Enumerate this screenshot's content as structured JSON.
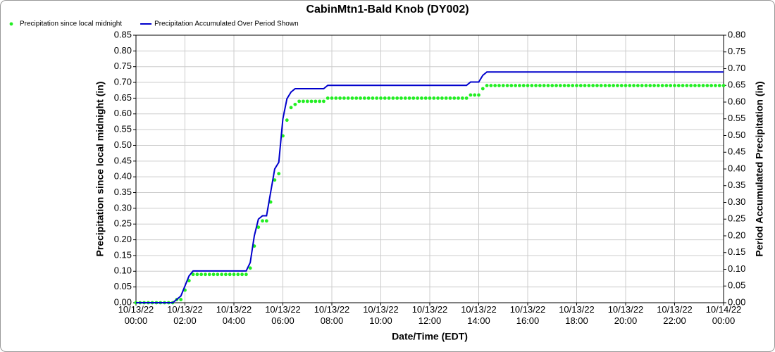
{
  "chart_data": {
    "type": "line",
    "title": "CabinMtn1-Bald Knob (DY002)",
    "x_label": "Date/Time (EDT)",
    "y_label": "Precipitation since local midnight (in)",
    "y2_label": "Period Accumulated Precipitation (in)",
    "grid": true,
    "legend": "top-left",
    "xlim": [
      "10/13/22 00:00",
      "10/14/22 00:00"
    ],
    "xticks": [
      "10/13/22 00:00",
      "10/13/22 02:00",
      "10/13/22 04:00",
      "10/13/22 06:00",
      "10/13/22 08:00",
      "10/13/22 10:00",
      "10/13/22 12:00",
      "10/13/22 14:00",
      "10/13/22 16:00",
      "10/13/22 18:00",
      "10/13/22 20:00",
      "10/13/22 22:00",
      "10/14/22 00:00"
    ],
    "ylim": [
      0,
      0.85
    ],
    "yticks": [
      {
        "value": 0,
        "label": "0.00"
      },
      {
        "value": 0.05,
        "label": "0.05"
      },
      {
        "value": 0.1,
        "label": "0.10"
      },
      {
        "value": 0.15,
        "label": "0.15"
      },
      {
        "value": 0.2,
        "label": "0.20"
      },
      {
        "value": 0.25,
        "label": "0.25"
      },
      {
        "value": 0.3,
        "label": "0.30"
      },
      {
        "value": 0.35,
        "label": "0.35"
      },
      {
        "value": 0.4,
        "label": "0.40"
      },
      {
        "value": 0.45,
        "label": "0.45"
      },
      {
        "value": 0.5,
        "label": "0.50"
      },
      {
        "value": 0.55,
        "label": "0.55"
      },
      {
        "value": 0.6,
        "label": "0.60"
      },
      {
        "value": 0.65,
        "label": "0.65"
      },
      {
        "value": 0.7,
        "label": "0.70"
      },
      {
        "value": 0.75,
        "label": "0.75"
      },
      {
        "value": 0.8,
        "label": "0.80"
      },
      {
        "value": 0.85,
        "label": "0.85"
      }
    ],
    "y2lim": [
      0,
      0.8
    ],
    "y2ticks": [
      {
        "value": 0,
        "label": "0.00"
      },
      {
        "value": 0.05,
        "label": "0.05"
      },
      {
        "value": 0.1,
        "label": "0.10"
      },
      {
        "value": 0.15,
        "label": "0.15"
      },
      {
        "value": 0.2,
        "label": "0.20"
      },
      {
        "value": 0.25,
        "label": "0.25"
      },
      {
        "value": 0.3,
        "label": "0.30"
      },
      {
        "value": 0.35,
        "label": "0.35"
      },
      {
        "value": 0.4,
        "label": "0.40"
      },
      {
        "value": 0.45,
        "label": "0.45"
      },
      {
        "value": 0.5,
        "label": "0.50"
      },
      {
        "value": 0.55,
        "label": "0.55"
      },
      {
        "value": 0.6,
        "label": "0.60"
      },
      {
        "value": 0.65,
        "label": "0.65"
      },
      {
        "value": 0.7,
        "label": "0.70"
      },
      {
        "value": 0.75,
        "label": "0.75"
      },
      {
        "value": 0.8,
        "label": "0.80"
      }
    ],
    "x": [
      "10/13/22 00:00",
      "10/13/22 00:10",
      "10/13/22 00:20",
      "10/13/22 00:30",
      "10/13/22 00:40",
      "10/13/22 00:50",
      "10/13/22 01:00",
      "10/13/22 01:10",
      "10/13/22 01:20",
      "10/13/22 01:30",
      "10/13/22 01:40",
      "10/13/22 01:50",
      "10/13/22 02:00",
      "10/13/22 02:10",
      "10/13/22 02:20",
      "10/13/22 02:30",
      "10/13/22 02:40",
      "10/13/22 02:50",
      "10/13/22 03:00",
      "10/13/22 03:10",
      "10/13/22 03:20",
      "10/13/22 03:30",
      "10/13/22 03:40",
      "10/13/22 03:50",
      "10/13/22 04:00",
      "10/13/22 04:10",
      "10/13/22 04:20",
      "10/13/22 04:30",
      "10/13/22 04:40",
      "10/13/22 04:50",
      "10/13/22 05:00",
      "10/13/22 05:10",
      "10/13/22 05:20",
      "10/13/22 05:30",
      "10/13/22 05:40",
      "10/13/22 05:50",
      "10/13/22 06:00",
      "10/13/22 06:10",
      "10/13/22 06:20",
      "10/13/22 06:30",
      "10/13/22 06:40",
      "10/13/22 06:50",
      "10/13/22 07:00",
      "10/13/22 07:10",
      "10/13/22 07:20",
      "10/13/22 07:30",
      "10/13/22 07:40",
      "10/13/22 07:50",
      "10/13/22 08:00",
      "10/13/22 08:10",
      "10/13/22 08:20",
      "10/13/22 08:30",
      "10/13/22 08:40",
      "10/13/22 08:50",
      "10/13/22 09:00",
      "10/13/22 09:10",
      "10/13/22 09:20",
      "10/13/22 09:30",
      "10/13/22 09:40",
      "10/13/22 09:50",
      "10/13/22 10:00",
      "10/13/22 10:10",
      "10/13/22 10:20",
      "10/13/22 10:30",
      "10/13/22 10:40",
      "10/13/22 10:50",
      "10/13/22 11:00",
      "10/13/22 11:10",
      "10/13/22 11:20",
      "10/13/22 11:30",
      "10/13/22 11:40",
      "10/13/22 11:50",
      "10/13/22 12:00",
      "10/13/22 12:10",
      "10/13/22 12:20",
      "10/13/22 12:30",
      "10/13/22 12:40",
      "10/13/22 12:50",
      "10/13/22 13:00",
      "10/13/22 13:10",
      "10/13/22 13:20",
      "10/13/22 13:30",
      "10/13/22 13:40",
      "10/13/22 13:50",
      "10/13/22 14:00",
      "10/13/22 14:10",
      "10/13/22 14:20",
      "10/13/22 14:30",
      "10/13/22 14:40",
      "10/13/22 14:50",
      "10/13/22 15:00",
      "10/13/22 15:10",
      "10/13/22 15:20",
      "10/13/22 15:30",
      "10/13/22 15:40",
      "10/13/22 15:50",
      "10/13/22 16:00",
      "10/13/22 16:10",
      "10/13/22 16:20",
      "10/13/22 16:30",
      "10/13/22 16:40",
      "10/13/22 16:50",
      "10/13/22 17:00",
      "10/13/22 17:10",
      "10/13/22 17:20",
      "10/13/22 17:30",
      "10/13/22 17:40",
      "10/13/22 17:50",
      "10/13/22 18:00",
      "10/13/22 18:10",
      "10/13/22 18:20",
      "10/13/22 18:30",
      "10/13/22 18:40",
      "10/13/22 18:50",
      "10/13/22 19:00",
      "10/13/22 19:10",
      "10/13/22 19:20",
      "10/13/22 19:30",
      "10/13/22 19:40",
      "10/13/22 19:50",
      "10/13/22 20:00",
      "10/13/22 20:10",
      "10/13/22 20:20",
      "10/13/22 20:30",
      "10/13/22 20:40",
      "10/13/22 20:50",
      "10/13/22 21:00",
      "10/13/22 21:10",
      "10/13/22 21:20",
      "10/13/22 21:30",
      "10/13/22 21:40",
      "10/13/22 21:50",
      "10/13/22 22:00",
      "10/13/22 22:10",
      "10/13/22 22:20",
      "10/13/22 22:30",
      "10/13/22 22:40",
      "10/13/22 22:50",
      "10/13/22 23:00",
      "10/13/22 23:10",
      "10/13/22 23:20",
      "10/13/22 23:30",
      "10/13/22 23:40",
      "10/13/22 23:50",
      "10/14/22 00:00"
    ],
    "series": [
      {
        "name": "Precipitation since local midnight",
        "type": "scatter",
        "axis": "y",
        "color": "#22ee22",
        "values": [
          0,
          0,
          0,
          0,
          0,
          0,
          0,
          0,
          0,
          0,
          0.01,
          0.01,
          0.04,
          0.07,
          0.09,
          0.09,
          0.09,
          0.09,
          0.09,
          0.09,
          0.09,
          0.09,
          0.09,
          0.09,
          0.09,
          0.09,
          0.09,
          0.09,
          0.11,
          0.18,
          0.24,
          0.26,
          0.26,
          0.32,
          0.39,
          0.41,
          0.53,
          0.58,
          0.62,
          0.63,
          0.64,
          0.64,
          0.64,
          0.64,
          0.64,
          0.64,
          0.64,
          0.65,
          0.65,
          0.65,
          0.65,
          0.65,
          0.65,
          0.65,
          0.65,
          0.65,
          0.65,
          0.65,
          0.65,
          0.65,
          0.65,
          0.65,
          0.65,
          0.65,
          0.65,
          0.65,
          0.65,
          0.65,
          0.65,
          0.65,
          0.65,
          0.65,
          0.65,
          0.65,
          0.65,
          0.65,
          0.65,
          0.65,
          0.65,
          0.65,
          0.65,
          0.65,
          0.66,
          0.66,
          0.66,
          0.68,
          0.69,
          0.69,
          0.69,
          0.69,
          0.69,
          0.69,
          0.69,
          0.69,
          0.69,
          0.69,
          0.69,
          0.69,
          0.69,
          0.69,
          0.69,
          0.69,
          0.69,
          0.69,
          0.69,
          0.69,
          0.69,
          0.69,
          0.69,
          0.69,
          0.69,
          0.69,
          0.69,
          0.69,
          0.69,
          0.69,
          0.69,
          0.69,
          0.69,
          0.69,
          0.69,
          0.69,
          0.69,
          0.69,
          0.69,
          0.69,
          0.69,
          0.69,
          0.69,
          0.69,
          0.69,
          0.69,
          0.69,
          0.69,
          0.69,
          0.69,
          0.69,
          0.69,
          0.69,
          0.69,
          0.69,
          0.69,
          0.69,
          0.69,
          0.69
        ]
      },
      {
        "name": "Precipitation Accumulated Over Period Shown",
        "type": "line",
        "axis": "y2",
        "color": "#0000cc",
        "values": [
          0,
          0,
          0,
          0,
          0,
          0,
          0,
          0,
          0,
          0,
          0.01,
          0.02,
          0.05,
          0.08,
          0.095,
          0.095,
          0.095,
          0.095,
          0.095,
          0.095,
          0.095,
          0.095,
          0.095,
          0.095,
          0.095,
          0.095,
          0.095,
          0.095,
          0.12,
          0.2,
          0.25,
          0.26,
          0.26,
          0.33,
          0.4,
          0.42,
          0.55,
          0.61,
          0.63,
          0.64,
          0.64,
          0.64,
          0.64,
          0.64,
          0.64,
          0.64,
          0.64,
          0.65,
          0.65,
          0.65,
          0.65,
          0.65,
          0.65,
          0.65,
          0.65,
          0.65,
          0.65,
          0.65,
          0.65,
          0.65,
          0.65,
          0.65,
          0.65,
          0.65,
          0.65,
          0.65,
          0.65,
          0.65,
          0.65,
          0.65,
          0.65,
          0.65,
          0.65,
          0.65,
          0.65,
          0.65,
          0.65,
          0.65,
          0.65,
          0.65,
          0.65,
          0.65,
          0.66,
          0.66,
          0.66,
          0.68,
          0.69,
          0.69,
          0.69,
          0.69,
          0.69,
          0.69,
          0.69,
          0.69,
          0.69,
          0.69,
          0.69,
          0.69,
          0.69,
          0.69,
          0.69,
          0.69,
          0.69,
          0.69,
          0.69,
          0.69,
          0.69,
          0.69,
          0.69,
          0.69,
          0.69,
          0.69,
          0.69,
          0.69,
          0.69,
          0.69,
          0.69,
          0.69,
          0.69,
          0.69,
          0.69,
          0.69,
          0.69,
          0.69,
          0.69,
          0.69,
          0.69,
          0.69,
          0.69,
          0.69,
          0.69,
          0.69,
          0.69,
          0.69,
          0.69,
          0.69,
          0.69,
          0.69,
          0.69,
          0.69,
          0.69,
          0.69,
          0.69,
          0.69,
          0.69
        ]
      }
    ]
  }
}
